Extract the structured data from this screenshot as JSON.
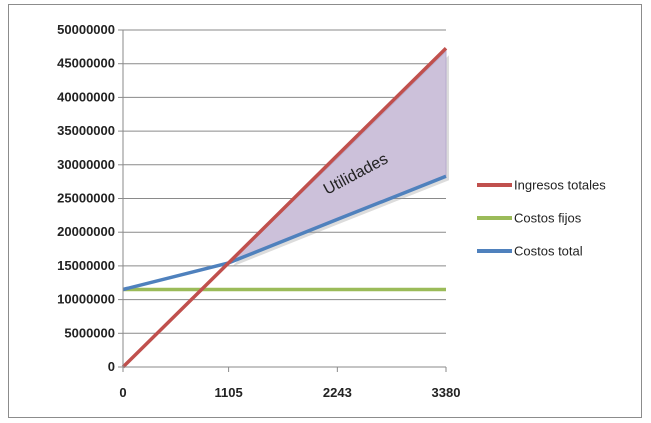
{
  "chart_data": {
    "type": "line",
    "x": [
      0,
      1105,
      2243,
      3380
    ],
    "xticks": [
      "0",
      "1105",
      "2243",
      "3380"
    ],
    "yticks": [
      "0",
      "5000000",
      "10000000",
      "15000000",
      "20000000",
      "25000000",
      "30000000",
      "35000000",
      "40000000",
      "45000000",
      "50000000"
    ],
    "ylim": [
      0,
      50000000
    ],
    "grid": "horizontal",
    "legend_position": "right",
    "series": [
      {
        "name": "Ingresos totales",
        "color": "#c0504d",
        "values": [
          0,
          15450000,
          31400000,
          47300000
        ]
      },
      {
        "name": "Costos fijos",
        "color": "#9bbb59",
        "values": [
          11500000,
          11500000,
          11500000,
          11500000
        ]
      },
      {
        "name": "Costos total",
        "color": "#4f81bd",
        "values": [
          11500000,
          15450000,
          21900000,
          28300000
        ]
      }
    ],
    "annotation": {
      "text": "Utilidades",
      "fill": "#ccc1da",
      "region_x_range": [
        1105,
        3380
      ]
    }
  }
}
